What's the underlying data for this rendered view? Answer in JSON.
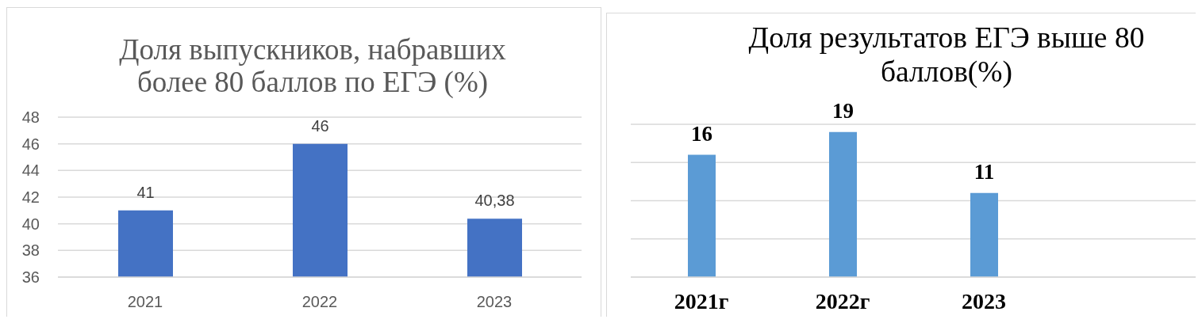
{
  "chart_data": [
    {
      "type": "bar",
      "title": "Доля выпускников, набравших более 80 баллов по ЕГЭ (%)",
      "categories": [
        "2021",
        "2022",
        "2023"
      ],
      "values": [
        41,
        46,
        40.38
      ],
      "value_labels": [
        "41",
        "46",
        "40,38"
      ],
      "color": "#4472c4",
      "ylim": [
        36,
        48
      ],
      "yticks": [
        36,
        38,
        40,
        42,
        44,
        46,
        48
      ],
      "grid": "y"
    },
    {
      "type": "bar",
      "title": "Доля результатов ЕГЭ выше 80 баллов(%)",
      "categories": [
        "2021г",
        "2022г",
        "2023",
        null
      ],
      "values": [
        16,
        19,
        11,
        null
      ],
      "data_labels": true,
      "color": "#5b9bd5",
      "ylim": [
        0,
        20
      ],
      "grid": "y",
      "tick_labels": "x"
    }
  ]
}
